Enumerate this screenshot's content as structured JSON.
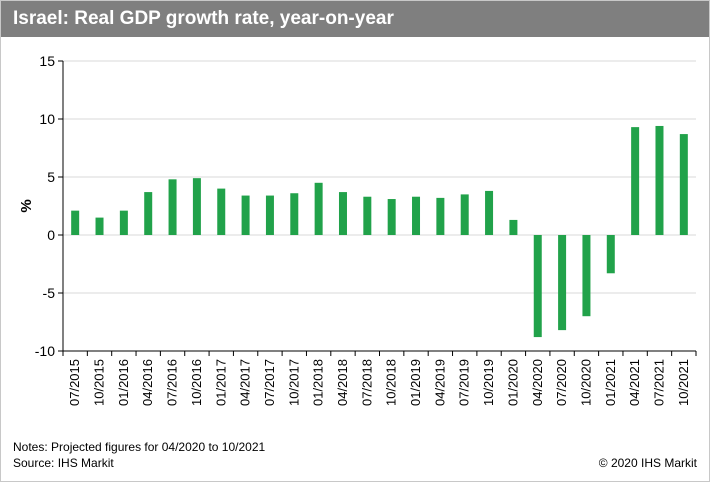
{
  "header": {
    "title": "Israel: Real GDP growth rate, year-on-year"
  },
  "footer": {
    "notes": "Notes: Projected figures for 04/2020 to 10/2021",
    "source": "Source: IHS Markit",
    "copyright": "© 2020 IHS Markit"
  },
  "chart_data": {
    "type": "bar",
    "title": "Israel: Real GDP growth rate, year-on-year",
    "xlabel": "",
    "ylabel": "%",
    "ylim": [
      -10,
      15
    ],
    "yticks": [
      -10,
      -5,
      0,
      5,
      10,
      15
    ],
    "ytick_labels": [
      "-10",
      "-5",
      "0",
      "5",
      "10",
      "15"
    ],
    "grid": "horizontal",
    "bar_color": "#21a24a",
    "categories": [
      "07/2015",
      "10/2015",
      "01/2016",
      "04/2016",
      "07/2016",
      "10/2016",
      "01/2017",
      "04/2017",
      "07/2017",
      "10/2017",
      "01/2018",
      "04/2018",
      "07/2018",
      "10/2018",
      "01/2019",
      "04/2019",
      "07/2019",
      "10/2019",
      "01/2020",
      "04/2020",
      "07/2020",
      "10/2020",
      "01/2021",
      "04/2021",
      "07/2021",
      "10/2021"
    ],
    "values": [
      2.1,
      1.5,
      2.1,
      3.7,
      4.8,
      4.9,
      4.0,
      3.4,
      3.4,
      3.6,
      4.5,
      3.7,
      3.3,
      3.1,
      3.3,
      3.2,
      3.5,
      3.8,
      1.3,
      -8.8,
      -8.2,
      -7.0,
      -3.3,
      9.3,
      9.4,
      8.7
    ]
  }
}
